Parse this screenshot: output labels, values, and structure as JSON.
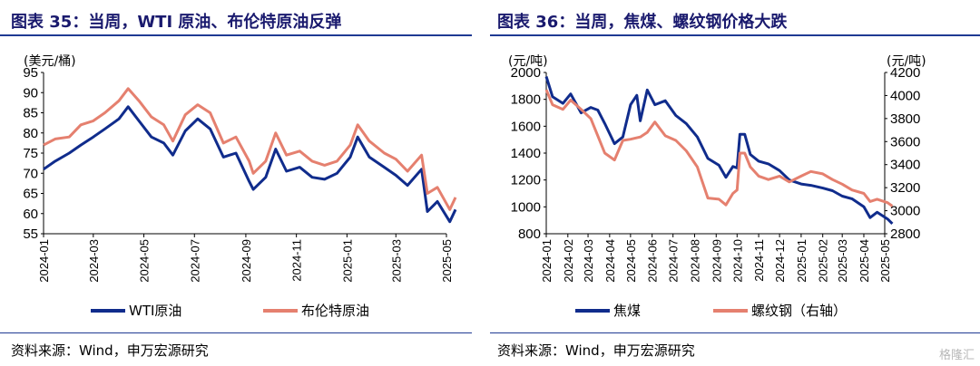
{
  "panels": [
    {
      "title": "图表 35：当周，WTI 原油、布伦特原油反弹",
      "source": "资料来源：Wind，申万宏源研究"
    },
    {
      "title": "图表 36：当周，焦煤、螺纹钢价格大跌",
      "source": "资料来源：Wind，申万宏源研究"
    }
  ],
  "watermark": "格隆汇",
  "chart_data": [
    {
      "type": "line",
      "title": "",
      "ylabel": "(美元/桶)",
      "ylim": [
        55,
        95
      ],
      "yticks": [
        55,
        60,
        65,
        70,
        75,
        80,
        85,
        90,
        95
      ],
      "xlim": [
        "2024-01",
        "2025-05"
      ],
      "xticks": [
        "2024-01",
        "2024-03",
        "2024-05",
        "2024-07",
        "2024-09",
        "2024-11",
        "2025-01",
        "2025-03",
        "2025-05"
      ],
      "legend_position": "bottom",
      "grid": false,
      "series": [
        {
          "name": "WTI原油",
          "color": "#102c8c",
          "axis": "left",
          "points": [
            [
              "2024-01-01",
              71
            ],
            [
              "2024-01-15",
              73
            ],
            [
              "2024-02-01",
              75
            ],
            [
              "2024-02-15",
              77
            ],
            [
              "2024-03-01",
              79
            ],
            [
              "2024-03-15",
              81
            ],
            [
              "2024-04-01",
              83.5
            ],
            [
              "2024-04-12",
              86.5
            ],
            [
              "2024-04-25",
              83
            ],
            [
              "2024-05-10",
              79
            ],
            [
              "2024-05-25",
              77.5
            ],
            [
              "2024-06-05",
              74.5
            ],
            [
              "2024-06-20",
              80.5
            ],
            [
              "2024-07-05",
              83.5
            ],
            [
              "2024-07-20",
              81
            ],
            [
              "2024-08-05",
              74
            ],
            [
              "2024-08-20",
              75
            ],
            [
              "2024-09-05",
              68
            ],
            [
              "2024-09-10",
              66
            ],
            [
              "2024-09-25",
              69
            ],
            [
              "2024-10-07",
              76
            ],
            [
              "2024-10-20",
              70.5
            ],
            [
              "2024-11-05",
              71.5
            ],
            [
              "2024-11-20",
              69
            ],
            [
              "2024-12-05",
              68.5
            ],
            [
              "2024-12-20",
              70
            ],
            [
              "2025-01-05",
              74
            ],
            [
              "2025-01-14",
              79
            ],
            [
              "2025-01-28",
              74
            ],
            [
              "2025-02-15",
              71.5
            ],
            [
              "2025-03-01",
              69.5
            ],
            [
              "2025-03-15",
              67
            ],
            [
              "2025-04-01",
              71
            ],
            [
              "2025-04-08",
              60.5
            ],
            [
              "2025-04-20",
              63
            ],
            [
              "2025-05-05",
              58
            ],
            [
              "2025-05-12",
              61
            ]
          ]
        },
        {
          "name": "布伦特原油",
          "color": "#e5806f",
          "axis": "left",
          "points": [
            [
              "2024-01-01",
              77
            ],
            [
              "2024-01-15",
              78.5
            ],
            [
              "2024-02-01",
              79
            ],
            [
              "2024-02-15",
              82
            ],
            [
              "2024-03-01",
              83
            ],
            [
              "2024-03-15",
              85
            ],
            [
              "2024-04-01",
              88
            ],
            [
              "2024-04-12",
              91
            ],
            [
              "2024-04-25",
              88
            ],
            [
              "2024-05-10",
              84
            ],
            [
              "2024-05-25",
              82
            ],
            [
              "2024-06-05",
              78
            ],
            [
              "2024-06-20",
              84.5
            ],
            [
              "2024-07-05",
              87
            ],
            [
              "2024-07-20",
              85
            ],
            [
              "2024-08-05",
              77.5
            ],
            [
              "2024-08-20",
              79
            ],
            [
              "2024-09-05",
              73
            ],
            [
              "2024-09-10",
              70
            ],
            [
              "2024-09-25",
              73
            ],
            [
              "2024-10-07",
              80
            ],
            [
              "2024-10-20",
              74.5
            ],
            [
              "2024-11-05",
              75.5
            ],
            [
              "2024-11-20",
              73
            ],
            [
              "2024-12-05",
              72
            ],
            [
              "2024-12-20",
              73
            ],
            [
              "2025-01-05",
              77
            ],
            [
              "2025-01-14",
              82
            ],
            [
              "2025-01-28",
              78
            ],
            [
              "2025-02-15",
              75
            ],
            [
              "2025-03-01",
              73.5
            ],
            [
              "2025-03-15",
              70.5
            ],
            [
              "2025-04-01",
              74.5
            ],
            [
              "2025-04-08",
              65
            ],
            [
              "2025-04-20",
              66.5
            ],
            [
              "2025-05-05",
              61
            ],
            [
              "2025-05-12",
              64
            ]
          ]
        }
      ]
    },
    {
      "type": "line",
      "title": "",
      "ylabel": "(元/吨)",
      "ylabel_right": "(元/吨)",
      "ylim": [
        800,
        2000
      ],
      "yticks": [
        800,
        1000,
        1200,
        1400,
        1600,
        1800,
        2000
      ],
      "ylim_right": [
        2800,
        4200
      ],
      "yticks_right": [
        2800,
        3000,
        3200,
        3400,
        3600,
        3800,
        4000,
        4200
      ],
      "xlim": [
        "2024-01",
        "2025-05"
      ],
      "xticks": [
        "2024-01",
        "2024-02",
        "2024-03",
        "2024-04",
        "2024-05",
        "2024-06",
        "2024-07",
        "2024-08",
        "2024-09",
        "2024-10",
        "2024-11",
        "2024-12",
        "2025-01",
        "2025-02",
        "2025-03",
        "2025-04",
        "2025-05"
      ],
      "legend_position": "bottom",
      "grid": false,
      "series": [
        {
          "name": "焦煤",
          "color": "#102c8c",
          "axis": "left",
          "points": [
            [
              "2024-01-01",
              1970
            ],
            [
              "2024-01-10",
              1820
            ],
            [
              "2024-01-25",
              1770
            ],
            [
              "2024-02-05",
              1840
            ],
            [
              "2024-02-20",
              1700
            ],
            [
              "2024-03-05",
              1740
            ],
            [
              "2024-03-15",
              1720
            ],
            [
              "2024-03-25",
              1620
            ],
            [
              "2024-04-08",
              1470
            ],
            [
              "2024-04-20",
              1520
            ],
            [
              "2024-05-01",
              1760
            ],
            [
              "2024-05-10",
              1830
            ],
            [
              "2024-05-15",
              1640
            ],
            [
              "2024-05-25",
              1870
            ],
            [
              "2024-06-05",
              1760
            ],
            [
              "2024-06-20",
              1790
            ],
            [
              "2024-07-05",
              1680
            ],
            [
              "2024-07-20",
              1620
            ],
            [
              "2024-08-05",
              1520
            ],
            [
              "2024-08-20",
              1360
            ],
            [
              "2024-09-05",
              1310
            ],
            [
              "2024-09-15",
              1220
            ],
            [
              "2024-09-25",
              1300
            ],
            [
              "2024-10-01",
              1290
            ],
            [
              "2024-10-05",
              1540
            ],
            [
              "2024-10-12",
              1540
            ],
            [
              "2024-10-20",
              1390
            ],
            [
              "2024-11-01",
              1340
            ],
            [
              "2024-11-15",
              1320
            ],
            [
              "2024-12-01",
              1270
            ],
            [
              "2024-12-15",
              1200
            ],
            [
              "2025-01-01",
              1170
            ],
            [
              "2025-01-15",
              1160
            ],
            [
              "2025-02-01",
              1140
            ],
            [
              "2025-02-15",
              1120
            ],
            [
              "2025-03-01",
              1080
            ],
            [
              "2025-03-15",
              1060
            ],
            [
              "2025-04-01",
              1000
            ],
            [
              "2025-04-10",
              920
            ],
            [
              "2025-04-20",
              960
            ],
            [
              "2025-05-05",
              910
            ],
            [
              "2025-05-12",
              875
            ]
          ]
        },
        {
          "name": "螺纹钢（右轴）",
          "color": "#e5806f",
          "axis": "right",
          "points": [
            [
              "2024-01-01",
              4050
            ],
            [
              "2024-01-10",
              3920
            ],
            [
              "2024-01-25",
              3880
            ],
            [
              "2024-02-05",
              3960
            ],
            [
              "2024-02-20",
              3880
            ],
            [
              "2024-03-05",
              3800
            ],
            [
              "2024-03-15",
              3650
            ],
            [
              "2024-03-25",
              3500
            ],
            [
              "2024-04-08",
              3440
            ],
            [
              "2024-04-20",
              3610
            ],
            [
              "2024-05-01",
              3620
            ],
            [
              "2024-05-15",
              3640
            ],
            [
              "2024-05-25",
              3680
            ],
            [
              "2024-06-05",
              3770
            ],
            [
              "2024-06-20",
              3650
            ],
            [
              "2024-07-05",
              3610
            ],
            [
              "2024-07-20",
              3520
            ],
            [
              "2024-08-05",
              3380
            ],
            [
              "2024-08-20",
              3110
            ],
            [
              "2024-09-05",
              3100
            ],
            [
              "2024-09-15",
              3050
            ],
            [
              "2024-09-25",
              3150
            ],
            [
              "2024-10-01",
              3180
            ],
            [
              "2024-10-05",
              3500
            ],
            [
              "2024-10-12",
              3500
            ],
            [
              "2024-10-20",
              3380
            ],
            [
              "2024-11-01",
              3300
            ],
            [
              "2024-11-15",
              3270
            ],
            [
              "2024-12-01",
              3300
            ],
            [
              "2024-12-15",
              3250
            ],
            [
              "2025-01-01",
              3300
            ],
            [
              "2025-01-15",
              3340
            ],
            [
              "2025-02-01",
              3320
            ],
            [
              "2025-02-15",
              3270
            ],
            [
              "2025-03-01",
              3230
            ],
            [
              "2025-03-15",
              3180
            ],
            [
              "2025-04-01",
              3150
            ],
            [
              "2025-04-10",
              3080
            ],
            [
              "2025-04-20",
              3100
            ],
            [
              "2025-05-05",
              3070
            ],
            [
              "2025-05-12",
              3040
            ]
          ]
        }
      ]
    }
  ]
}
